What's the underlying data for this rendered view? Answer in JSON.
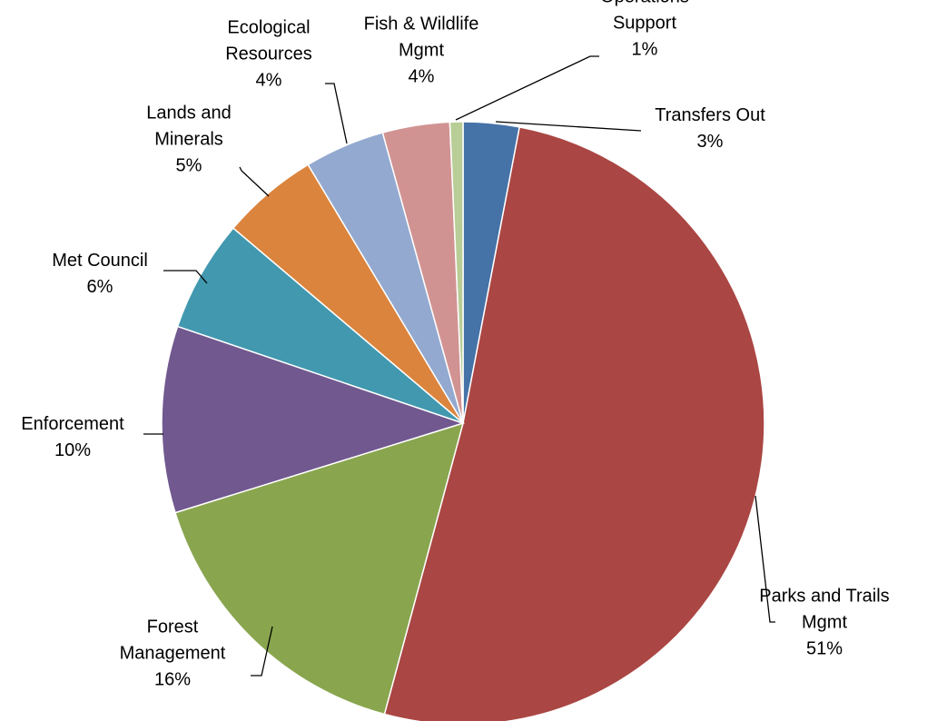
{
  "chart_data": {
    "type": "pie",
    "title": "",
    "legend": "none",
    "start_angle_deg": 0,
    "direction": "clockwise",
    "slices": [
      {
        "label": [
          "Transfers Out"
        ],
        "percent_label": "3%",
        "value": 3.0,
        "color": "#4572A7"
      },
      {
        "label": [
          "Parks and Trails",
          "Mgmt"
        ],
        "percent_label": "51%",
        "value": 51.2,
        "color": "#AA4643"
      },
      {
        "label": [
          "Forest",
          "Management"
        ],
        "percent_label": "16%",
        "value": 16.0,
        "color": "#89A54E"
      },
      {
        "label": [
          "Enforcement"
        ],
        "percent_label": "10%",
        "value": 10.0,
        "color": "#71588F"
      },
      {
        "label": [
          "Met Council"
        ],
        "percent_label": "6%",
        "value": 6.0,
        "color": "#4198AF"
      },
      {
        "label": [
          "Lands and",
          "Minerals"
        ],
        "percent_label": "5%",
        "value": 5.2,
        "color": "#DB843D"
      },
      {
        "label": [
          "Ecological",
          "Resources"
        ],
        "percent_label": "4%",
        "value": 4.3,
        "color": "#93A9CF"
      },
      {
        "label": [
          "Fish & Wildlife",
          "Mgmt"
        ],
        "percent_label": "4%",
        "value": 3.6,
        "color": "#D19392"
      },
      {
        "label": [
          "Operations",
          "Support"
        ],
        "percent_label": "1%",
        "value": 0.7,
        "color": "#B9CD96"
      }
    ]
  }
}
